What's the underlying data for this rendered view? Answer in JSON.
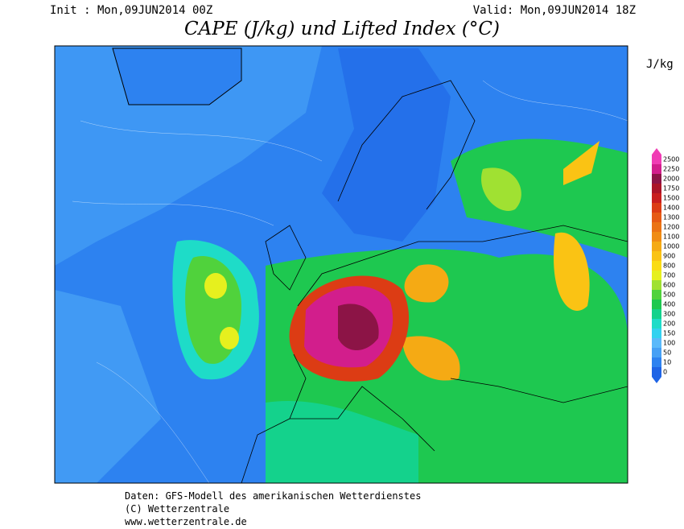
{
  "header": {
    "init": "Init : Mon,09JUN2014 00Z",
    "valid": "Valid: Mon,09JUN2014 18Z",
    "title": "CAPE (J/kg) und Lifted Index (°C)"
  },
  "unit": "J/kg",
  "colorbar": {
    "levels": [
      {
        "value": 0,
        "color": "#1e64e6"
      },
      {
        "value": 10,
        "color": "#2d82f0"
      },
      {
        "value": 50,
        "color": "#46a0f5"
      },
      {
        "value": 100,
        "color": "#5ab9fa"
      },
      {
        "value": 150,
        "color": "#32d2f0"
      },
      {
        "value": 200,
        "color": "#1edcc8"
      },
      {
        "value": 300,
        "color": "#14d28c"
      },
      {
        "value": 400,
        "color": "#1ec850"
      },
      {
        "value": 500,
        "color": "#50d23c"
      },
      {
        "value": 600,
        "color": "#a0e132"
      },
      {
        "value": 700,
        "color": "#e6f01e"
      },
      {
        "value": 800,
        "color": "#fadc14"
      },
      {
        "value": 900,
        "color": "#fac314"
      },
      {
        "value": 1000,
        "color": "#f5aa14"
      },
      {
        "value": 1100,
        "color": "#f08c14"
      },
      {
        "value": 1200,
        "color": "#eb7314"
      },
      {
        "value": 1300,
        "color": "#e65a14"
      },
      {
        "value": 1400,
        "color": "#dc3c14"
      },
      {
        "value": 1500,
        "color": "#c81e1e"
      },
      {
        "value": 1750,
        "color": "#aa1428"
      },
      {
        "value": 2000,
        "color": "#8c1446"
      },
      {
        "value": 2250,
        "color": "#d21e8c"
      },
      {
        "value": 2500,
        "color": "#f03cb4"
      }
    ]
  },
  "footer": [
    "Daten: GFS-Modell des amerikanischen Wetterdienstes",
    "(C) Wetterzentrale",
    "www.wetterzentrale.de"
  ]
}
